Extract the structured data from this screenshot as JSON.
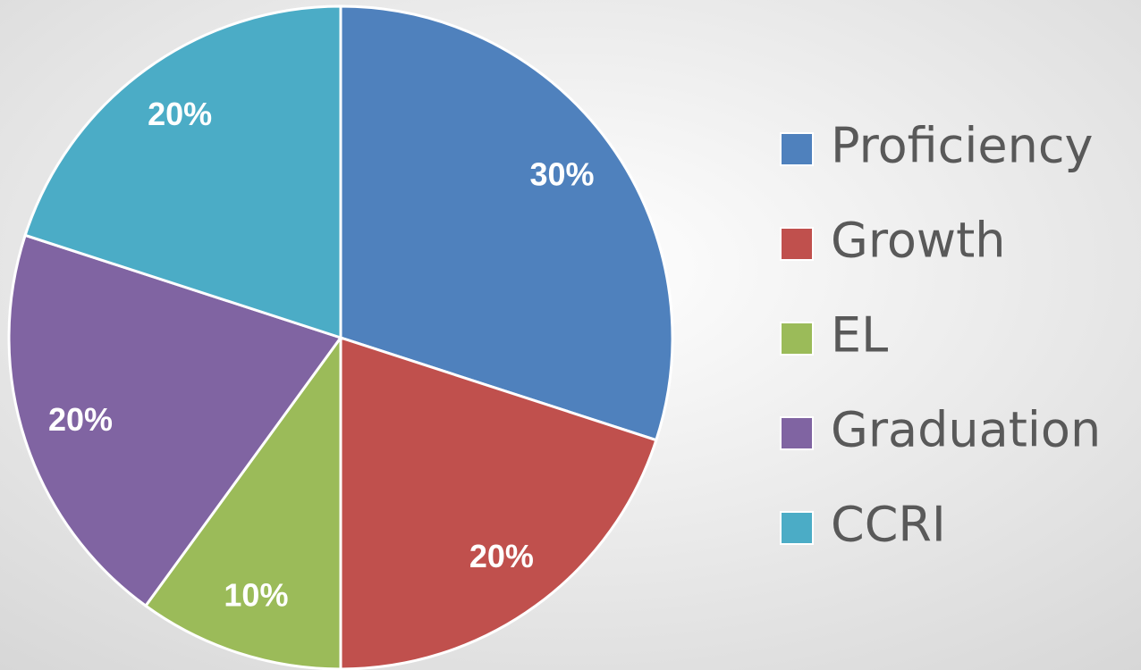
{
  "chart_data": {
    "type": "pie",
    "categories": [
      "Proficiency",
      "Growth",
      "EL",
      "Graduation",
      "CCRI"
    ],
    "values": [
      30,
      20,
      10,
      20,
      20
    ],
    "value_labels": [
      "30%",
      "20%",
      "10%",
      "20%",
      "20%"
    ],
    "colors": [
      "#4f81bd",
      "#c0504d",
      "#9bbb59",
      "#8064a2",
      "#4bacc6"
    ],
    "legend": "right"
  }
}
